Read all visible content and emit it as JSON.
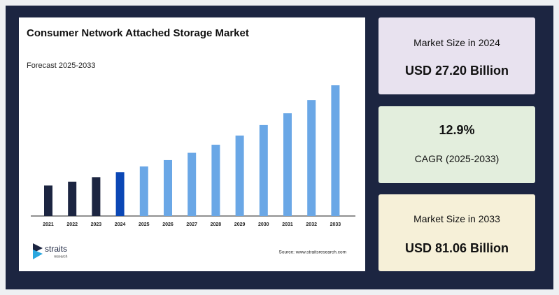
{
  "chart_data": {
    "type": "bar",
    "title": "Consumer Network Attached Storage Market",
    "subtitle": "Forecast 2025-2033",
    "categories": [
      "2021",
      "2022",
      "2023",
      "2024",
      "2025",
      "2026",
      "2027",
      "2028",
      "2029",
      "2030",
      "2031",
      "2032",
      "2033"
    ],
    "values": [
      18.9,
      21.3,
      24.1,
      27.2,
      30.7,
      34.7,
      39.2,
      44.2,
      49.9,
      56.4,
      63.7,
      71.9,
      81.06
    ],
    "colors": [
      "#1c2541",
      "#1c2541",
      "#1c2541",
      "#0b47b5",
      "#6aa7e6",
      "#6aa7e6",
      "#6aa7e6",
      "#6aa7e6",
      "#6aa7e6",
      "#6aa7e6",
      "#6aa7e6",
      "#6aa7e6",
      "#6aa7e6"
    ],
    "source": "Source: www.straitsresearch.com"
  },
  "logo": {
    "name": "straits",
    "tagline": "research"
  },
  "cards": [
    {
      "label": "Market Size in 2024",
      "value": "USD 27.20 Billion"
    },
    {
      "value": "12.9%",
      "label": "CAGR (2025-2033)"
    },
    {
      "label": "Market Size in 2033",
      "value": "USD 81.06 Billion"
    }
  ]
}
